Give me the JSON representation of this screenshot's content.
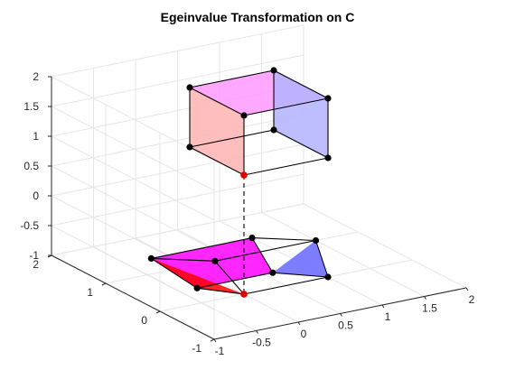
{
  "chart_data": {
    "type": "3d-wireframe",
    "title": "Egeinvalue Transformation on C",
    "xlim": [
      -1,
      2
    ],
    "ylim": [
      -1,
      2
    ],
    "zlim": [
      -1,
      2
    ],
    "x_ticks": [
      "-1",
      "-0.5",
      "0",
      "0.5",
      "1",
      "1.5",
      "2"
    ],
    "y_ticks": [
      "-1",
      "0",
      "1",
      "2"
    ],
    "z_ticks": [
      "-1",
      "-0.5",
      "0",
      "0.5",
      "1",
      "1.5",
      "2"
    ],
    "grid": true,
    "upper_cube": {
      "vertices": [
        [
          0,
          0,
          1
        ],
        [
          1,
          0,
          1
        ],
        [
          1,
          1,
          1
        ],
        [
          0,
          1,
          1
        ],
        [
          0,
          0,
          2
        ],
        [
          1,
          0,
          2
        ],
        [
          1,
          1,
          2
        ],
        [
          0,
          1,
          2
        ]
      ],
      "highlighted_vertex": [
        0,
        0,
        1
      ],
      "faces": [
        {
          "vertices": [
            0,
            4,
            7,
            3
          ],
          "color": "#ffb3b3"
        },
        {
          "vertices": [
            4,
            5,
            6,
            7
          ],
          "color": "#ff99ff"
        },
        {
          "vertices": [
            5,
            6,
            2,
            1
          ],
          "color": "#b3b3ff"
        }
      ]
    },
    "transformed_shape": {
      "vertices": [
        [
          0,
          0,
          -1
        ],
        [
          1,
          0,
          -1
        ],
        [
          1.5,
          1,
          -1
        ],
        [
          0.3,
          1,
          -1
        ],
        [
          -0.3,
          0.4,
          -1
        ],
        [
          0.6,
          0.4,
          -1
        ],
        [
          1.0,
          1.4,
          -1
        ],
        [
          -0.2,
          1.4,
          -1
        ]
      ],
      "highlighted_vertex": [
        0,
        0,
        -1
      ],
      "faces": [
        {
          "vertices": [
            4,
            5,
            6,
            7
          ],
          "color": "#ff00ff"
        },
        {
          "vertices": [
            0,
            4,
            7
          ],
          "color": "#ff0000"
        },
        {
          "vertices": [
            5,
            1,
            2
          ],
          "color": "#6666ff"
        }
      ]
    },
    "connector": {
      "from": [
        0,
        0,
        1
      ],
      "to": [
        0,
        0,
        -1
      ],
      "style": "dashed"
    }
  }
}
